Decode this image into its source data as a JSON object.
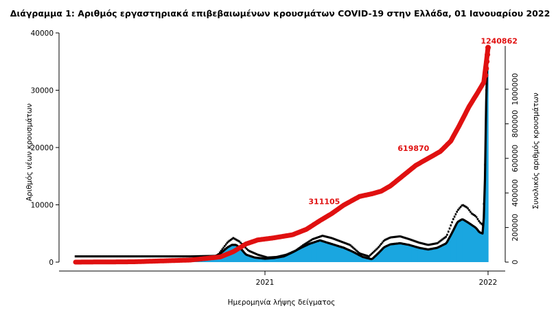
{
  "chart_data": {
    "type": "bar",
    "title": "Διάγραμμα 1: Αριθμός εργαστηριακά επιβεβαιωμένων κρουσμάτων COVID-19 στην Ελλάδα, 01 Ιανουαρίου 2022",
    "xlabel": "Ημερομηνία λήψης δείγματος",
    "ylabel_left": "Αριθμός νέων κρουσμάτων",
    "ylabel_right": "Συνολικός αριθμός κρουσμάτων",
    "x_ticks": [
      {
        "date": "2021-01-01",
        "label": "2021"
      },
      {
        "date": "2022-01-01",
        "label": "2022"
      }
    ],
    "x_range": [
      "2020-02-26",
      "2022-01-01"
    ],
    "y_left_range": [
      0,
      40000
    ],
    "y_left_ticks": [
      0,
      10000,
      20000,
      30000,
      40000
    ],
    "y_right_range": [
      0,
      1250000
    ],
    "y_right_ticks": [
      0,
      200000,
      400000,
      600000,
      800000,
      1000000
    ],
    "bar_color": "#1aa6e0",
    "ma_color": "#000000",
    "cum_color": "#e01010",
    "grid": false,
    "series": [
      {
        "kind": "bars",
        "points": [
          [
            "2020-02-26",
            0
          ],
          [
            "2020-05-01",
            0
          ],
          [
            "2020-07-01",
            10
          ],
          [
            "2020-08-15",
            200
          ],
          [
            "2020-09-15",
            300
          ],
          [
            "2020-10-01",
            500
          ],
          [
            "2020-10-20",
            1500
          ],
          [
            "2020-11-01",
            2600
          ],
          [
            "2020-11-08",
            3000
          ],
          [
            "2020-11-15",
            3000
          ],
          [
            "2020-11-22",
            2400
          ],
          [
            "2020-12-01",
            1300
          ],
          [
            "2020-12-15",
            800
          ],
          [
            "2021-01-01",
            600
          ],
          [
            "2021-01-15",
            700
          ],
          [
            "2021-02-01",
            1000
          ],
          [
            "2021-02-15",
            1700
          ],
          [
            "2021-03-01",
            2500
          ],
          [
            "2021-03-15",
            3200
          ],
          [
            "2021-04-01",
            3800
          ],
          [
            "2021-04-10",
            3500
          ],
          [
            "2021-04-25",
            3000
          ],
          [
            "2021-05-10",
            2500
          ],
          [
            "2021-05-25",
            1800
          ],
          [
            "2021-06-10",
            900
          ],
          [
            "2021-06-25",
            500
          ],
          [
            "2021-07-05",
            1500
          ],
          [
            "2021-07-15",
            2600
          ],
          [
            "2021-07-25",
            3100
          ],
          [
            "2021-08-10",
            3300
          ],
          [
            "2021-08-25",
            3000
          ],
          [
            "2021-09-10",
            2500
          ],
          [
            "2021-09-25",
            2200
          ],
          [
            "2021-10-10",
            2500
          ],
          [
            "2021-10-25",
            3300
          ],
          [
            "2021-11-05",
            5500
          ],
          [
            "2021-11-12",
            7000
          ],
          [
            "2021-11-20",
            7500
          ],
          [
            "2021-11-28",
            7000
          ],
          [
            "2021-12-05",
            6500
          ],
          [
            "2021-12-12",
            6000
          ],
          [
            "2021-12-18",
            5200
          ],
          [
            "2021-12-23",
            5000
          ],
          [
            "2021-12-26",
            9000
          ],
          [
            "2021-12-28",
            20000
          ],
          [
            "2021-12-29",
            28000
          ],
          [
            "2021-12-30",
            34000
          ],
          [
            "2021-12-31",
            36000
          ],
          [
            "2022-01-01",
            34000
          ]
        ]
      },
      {
        "kind": "daily_labels",
        "points": [
          [
            "2020-02-26",
            1000
          ],
          [
            "2020-06-01",
            1000
          ],
          [
            "2020-09-01",
            1000
          ],
          [
            "2020-10-15",
            1100
          ],
          [
            "2020-11-01",
            3500
          ],
          [
            "2020-11-10",
            4200
          ],
          [
            "2020-11-20",
            3600
          ],
          [
            "2020-12-05",
            2000
          ],
          [
            "2020-12-20",
            1300
          ],
          [
            "2021-01-05",
            800
          ],
          [
            "2021-01-20",
            900
          ],
          [
            "2021-02-05",
            1300
          ],
          [
            "2021-02-20",
            2000
          ],
          [
            "2021-03-05",
            3000
          ],
          [
            "2021-03-20",
            4000
          ],
          [
            "2021-04-05",
            4600
          ],
          [
            "2021-04-20",
            4200
          ],
          [
            "2021-05-05",
            3600
          ],
          [
            "2021-05-20",
            3000
          ],
          [
            "2021-06-05",
            1500
          ],
          [
            "2021-06-20",
            1000
          ],
          [
            "2021-07-05",
            2500
          ],
          [
            "2021-07-15",
            3800
          ],
          [
            "2021-07-25",
            4300
          ],
          [
            "2021-08-10",
            4500
          ],
          [
            "2021-08-25",
            4000
          ],
          [
            "2021-09-10",
            3400
          ],
          [
            "2021-09-25",
            3000
          ],
          [
            "2021-10-10",
            3300
          ],
          [
            "2021-10-25",
            4500
          ],
          [
            "2021-11-05",
            7500
          ],
          [
            "2021-11-12",
            9000
          ],
          [
            "2021-11-20",
            10000
          ],
          [
            "2021-11-28",
            9500
          ],
          [
            "2021-12-05",
            8500
          ],
          [
            "2021-12-12",
            8000
          ],
          [
            "2021-12-18",
            7000
          ],
          [
            "2021-12-23",
            6500
          ],
          [
            "2021-12-26",
            12000
          ],
          [
            "2021-12-28",
            22000
          ],
          [
            "2021-12-29",
            30000
          ],
          [
            "2021-12-30",
            36000
          ],
          [
            "2022-01-01",
            36500
          ]
        ]
      },
      {
        "kind": "moving_average",
        "points": [
          [
            "2020-02-26",
            0
          ],
          [
            "2020-05-01",
            0
          ],
          [
            "2020-07-01",
            10
          ],
          [
            "2020-08-15",
            200
          ],
          [
            "2020-09-15",
            300
          ],
          [
            "2020-10-01",
            500
          ],
          [
            "2020-10-20",
            1500
          ],
          [
            "2020-11-01",
            2600
          ],
          [
            "2020-11-08",
            3000
          ],
          [
            "2020-11-15",
            3000
          ],
          [
            "2020-11-22",
            2400
          ],
          [
            "2020-12-01",
            1300
          ],
          [
            "2020-12-15",
            800
          ],
          [
            "2021-01-01",
            600
          ],
          [
            "2021-01-15",
            700
          ],
          [
            "2021-02-01",
            1000
          ],
          [
            "2021-02-15",
            1700
          ],
          [
            "2021-03-01",
            2500
          ],
          [
            "2021-03-15",
            3200
          ],
          [
            "2021-04-01",
            3800
          ],
          [
            "2021-04-10",
            3500
          ],
          [
            "2021-04-25",
            3000
          ],
          [
            "2021-05-10",
            2500
          ],
          [
            "2021-05-25",
            1800
          ],
          [
            "2021-06-10",
            900
          ],
          [
            "2021-06-25",
            500
          ],
          [
            "2021-07-05",
            1500
          ],
          [
            "2021-07-15",
            2600
          ],
          [
            "2021-07-25",
            3100
          ],
          [
            "2021-08-10",
            3300
          ],
          [
            "2021-08-25",
            3000
          ],
          [
            "2021-09-10",
            2500
          ],
          [
            "2021-09-25",
            2200
          ],
          [
            "2021-10-10",
            2500
          ],
          [
            "2021-10-25",
            3300
          ],
          [
            "2021-11-05",
            5500
          ],
          [
            "2021-11-12",
            7000
          ],
          [
            "2021-11-20",
            7500
          ],
          [
            "2021-11-28",
            7000
          ],
          [
            "2021-12-05",
            6500
          ],
          [
            "2021-12-12",
            6000
          ],
          [
            "2021-12-18",
            5200
          ],
          [
            "2021-12-23",
            5000
          ],
          [
            "2021-12-26",
            9000
          ],
          [
            "2021-12-28",
            20000
          ],
          [
            "2021-12-29",
            28000
          ],
          [
            "2021-12-30",
            34000
          ],
          [
            "2021-12-31",
            36000
          ],
          [
            "2022-01-01",
            34000
          ]
        ]
      },
      {
        "kind": "cumulative",
        "points": [
          [
            "2020-02-26",
            0
          ],
          [
            "2020-06-01",
            2000
          ],
          [
            "2020-09-01",
            12000
          ],
          [
            "2020-10-20",
            30000
          ],
          [
            "2020-11-10",
            60000
          ],
          [
            "2020-12-01",
            105000
          ],
          [
            "2020-12-20",
            128000
          ],
          [
            "2021-01-15",
            140000
          ],
          [
            "2021-02-15",
            158000
          ],
          [
            "2021-03-10",
            190000
          ],
          [
            "2021-04-01",
            240000
          ],
          [
            "2021-04-20",
            280000
          ],
          [
            "2021-05-10",
            330000
          ],
          [
            "2021-06-05",
            380000
          ],
          [
            "2021-06-25",
            395000
          ],
          [
            "2021-07-10",
            410000
          ],
          [
            "2021-07-25",
            440000
          ],
          [
            "2021-08-15",
            500000
          ],
          [
            "2021-09-05",
            560000
          ],
          [
            "2021-09-25",
            600000
          ],
          [
            "2021-10-15",
            640000
          ],
          [
            "2021-11-01",
            700000
          ],
          [
            "2021-11-15",
            790000
          ],
          [
            "2021-12-01",
            900000
          ],
          [
            "2021-12-15",
            980000
          ],
          [
            "2021-12-25",
            1040000
          ],
          [
            "2021-12-29",
            1150000
          ],
          [
            "2022-01-01",
            1240862
          ]
        ]
      }
    ],
    "annotations": [
      {
        "date": "2021-04-08",
        "value": 311105,
        "label": "311105"
      },
      {
        "date": "2021-09-01",
        "value": 619870,
        "label": "619870"
      },
      {
        "date": "2021-12-20",
        "value": 1240862,
        "label": "1240862"
      }
    ]
  }
}
